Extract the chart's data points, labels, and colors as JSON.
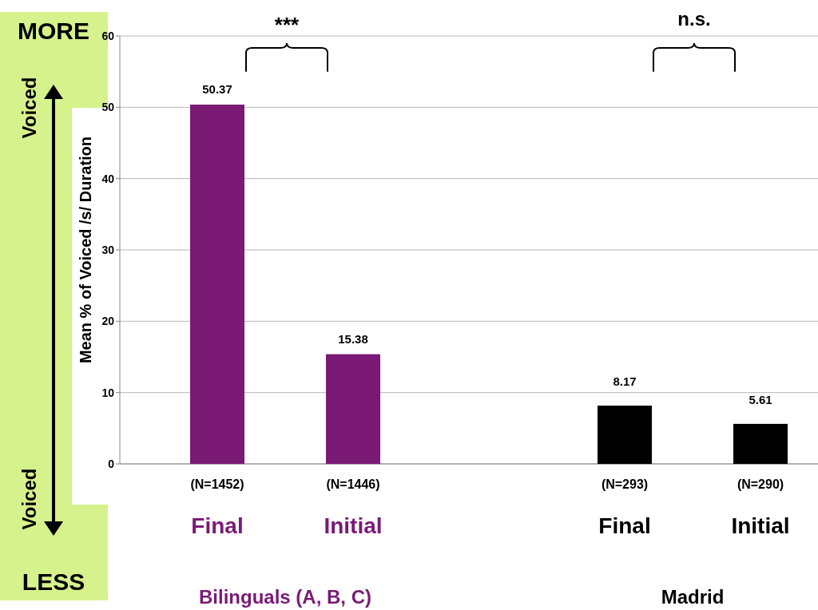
{
  "chart_data": {
    "type": "bar",
    "ylabel": "Mean % of Voiced /s/ Duration",
    "categories": [
      "(N=1452)\nFinal",
      "(N=1446)\nInitial",
      null,
      "(N=293)\nFinal",
      "(N=290)\nInitial"
    ],
    "values": [
      50.37,
      15.38,
      null,
      8.17,
      5.61
    ],
    "colors": [
      "#7a1a75",
      "#7a1a75",
      null,
      "#000000",
      "#000000"
    ],
    "data_labels": true,
    "ylim": [
      0,
      60
    ],
    "yticks": [
      0,
      10,
      20,
      30,
      40,
      50,
      60
    ],
    "grid": "y",
    "annotations": [
      "MORE",
      "Voiced",
      "Voiced",
      "LESS",
      "***",
      "n.s.",
      "Bilinguals (A, B, C)",
      "Madrid"
    ]
  }
}
